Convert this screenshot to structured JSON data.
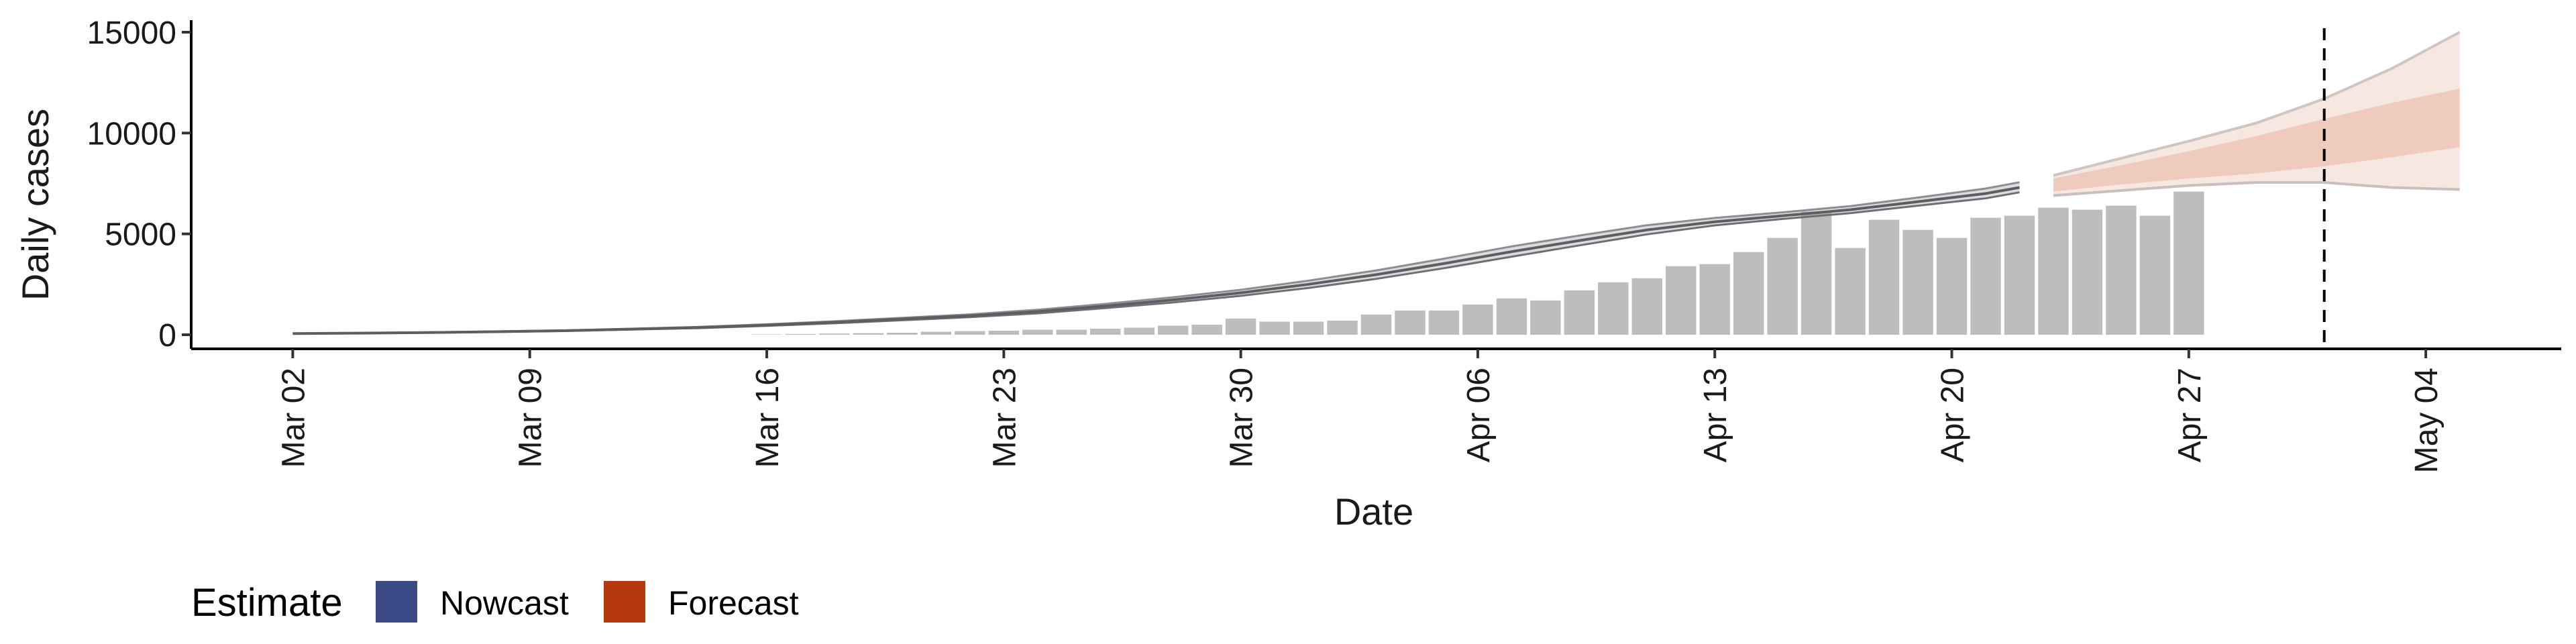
{
  "chart_data": {
    "type": "bar",
    "title": "",
    "xlabel": "Date",
    "ylabel": "Daily cases",
    "ylim": [
      0,
      15000
    ],
    "yticks": [
      0,
      5000,
      10000,
      15000
    ],
    "ytick_labels": [
      "0",
      "5000",
      "10000",
      "15000"
    ],
    "xlim": [
      "2020-02-28",
      "2020-05-08"
    ],
    "xtick_dates": [
      "2020-03-02",
      "2020-03-09",
      "2020-03-16",
      "2020-03-23",
      "2020-03-30",
      "2020-04-06",
      "2020-04-13",
      "2020-04-20",
      "2020-04-27",
      "2020-05-04"
    ],
    "xtick_labels": [
      "Mar 02",
      "Mar 09",
      "Mar 16",
      "Mar 23",
      "Mar 30",
      "Apr 06",
      "Apr 13",
      "Apr 20",
      "Apr 27",
      "May 04"
    ],
    "grid": false,
    "vline_date": "2020-05-01",
    "bars": {
      "start_date": "2020-03-16",
      "values": [
        20,
        40,
        60,
        80,
        100,
        150,
        180,
        200,
        250,
        250,
        300,
        350,
        450,
        500,
        800,
        650,
        650,
        700,
        1000,
        1200,
        1200,
        1500,
        1800,
        1700,
        2200,
        2600,
        2800,
        3400,
        3500,
        4100,
        4800,
        6100,
        4300,
        5700,
        5200,
        4800,
        5800,
        5900,
        6300,
        6200,
        6400,
        5900,
        7100
      ],
      "color": "#bdbdbd"
    },
    "series": [
      {
        "name": "Nowcast",
        "color": "#3b4a86",
        "dates": [
          "2020-03-02",
          "2020-03-04",
          "2020-03-06",
          "2020-03-08",
          "2020-03-10",
          "2020-03-12",
          "2020-03-14",
          "2020-03-16",
          "2020-03-18",
          "2020-03-20",
          "2020-03-22",
          "2020-03-24",
          "2020-03-26",
          "2020-03-28",
          "2020-03-30",
          "2020-04-01",
          "2020-04-03",
          "2020-04-05",
          "2020-04-07",
          "2020-04-09",
          "2020-04-11",
          "2020-04-13",
          "2020-04-15",
          "2020-04-17",
          "2020-04-19",
          "2020-04-21",
          "2020-04-22"
        ],
        "median": [
          60,
          80,
          110,
          150,
          200,
          280,
          360,
          480,
          620,
          780,
          940,
          1150,
          1420,
          1730,
          2080,
          2500,
          2980,
          3530,
          4120,
          4670,
          5200,
          5600,
          5900,
          6200,
          6600,
          7000,
          7300
        ],
        "lower": [
          55,
          75,
          100,
          140,
          185,
          260,
          330,
          440,
          570,
          720,
          870,
          1060,
          1320,
          1600,
          1930,
          2320,
          2770,
          3300,
          3870,
          4430,
          4980,
          5420,
          5740,
          6030,
          6400,
          6760,
          7060
        ],
        "upper": [
          65,
          88,
          120,
          165,
          215,
          300,
          390,
          520,
          670,
          840,
          1010,
          1240,
          1530,
          1860,
          2230,
          2680,
          3190,
          3770,
          4380,
          4920,
          5430,
          5790,
          6070,
          6380,
          6800,
          7250,
          7560
        ]
      },
      {
        "name": "Forecast",
        "color": "#b5390d",
        "dates": [
          "2020-04-23",
          "2020-04-25",
          "2020-04-27",
          "2020-04-29",
          "2020-05-01",
          "2020-05-03",
          "2020-05-05"
        ],
        "median": [
          7400,
          7900,
          8400,
          8900,
          9500,
          10200,
          10700
        ],
        "lower50": [
          7100,
          7450,
          7750,
          8000,
          8350,
          8800,
          9300
        ],
        "upper50": [
          7750,
          8400,
          9100,
          9850,
          10700,
          11500,
          12200
        ],
        "lower90": [
          6900,
          7150,
          7400,
          7550,
          7550,
          7300,
          7200
        ],
        "upper90": [
          7900,
          8750,
          9600,
          10500,
          11700,
          13200,
          15000
        ]
      }
    ],
    "legend": {
      "title": "Estimate",
      "placement": "bottom-left",
      "entries": [
        {
          "label": "Nowcast",
          "color": "#3b4a86"
        },
        {
          "label": "Forecast",
          "color": "#b5390d"
        }
      ]
    }
  }
}
